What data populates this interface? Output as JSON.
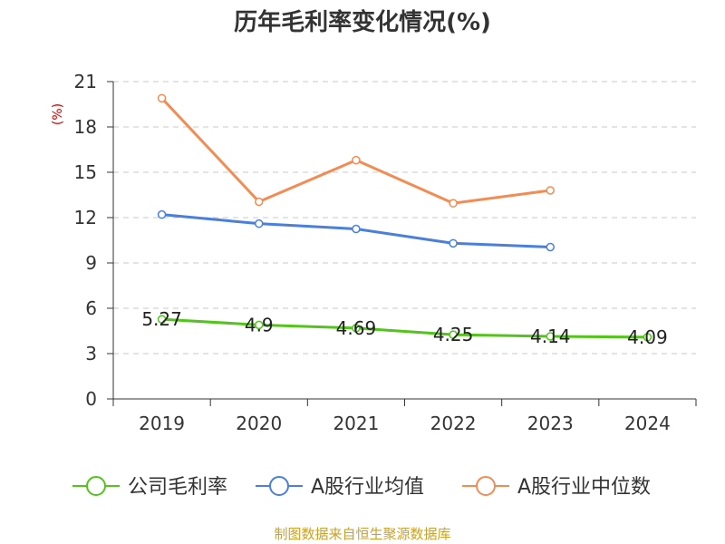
{
  "chart_data": {
    "type": "line",
    "title": "历年毛利率变化情况(%)",
    "ylabel": "(%)",
    "xlabel": "",
    "categories": [
      "2019",
      "2020",
      "2021",
      "2022",
      "2023",
      "2024"
    ],
    "ylim": [
      0,
      21
    ],
    "yticks": [
      0,
      3,
      6,
      9,
      12,
      15,
      18,
      21
    ],
    "grid": true,
    "legend_position": "bottom",
    "series": [
      {
        "name": "公司毛利率",
        "color": "#52c41a",
        "values": [
          5.27,
          4.9,
          4.69,
          4.25,
          4.14,
          4.09
        ],
        "data_labels": [
          "5.27",
          "4.9",
          "4.69",
          "4.25",
          "4.14",
          "4.09"
        ]
      },
      {
        "name": "A股行业均值",
        "color": "#4a7fdb",
        "values": [
          12.2,
          11.6,
          11.25,
          10.3,
          10.05,
          null
        ]
      },
      {
        "name": "A股行业中位数",
        "color": "#f28c52",
        "values": [
          19.9,
          13.05,
          15.8,
          12.95,
          13.8,
          null
        ]
      }
    ]
  },
  "footer": "制图数据来自恒生聚源数据库"
}
